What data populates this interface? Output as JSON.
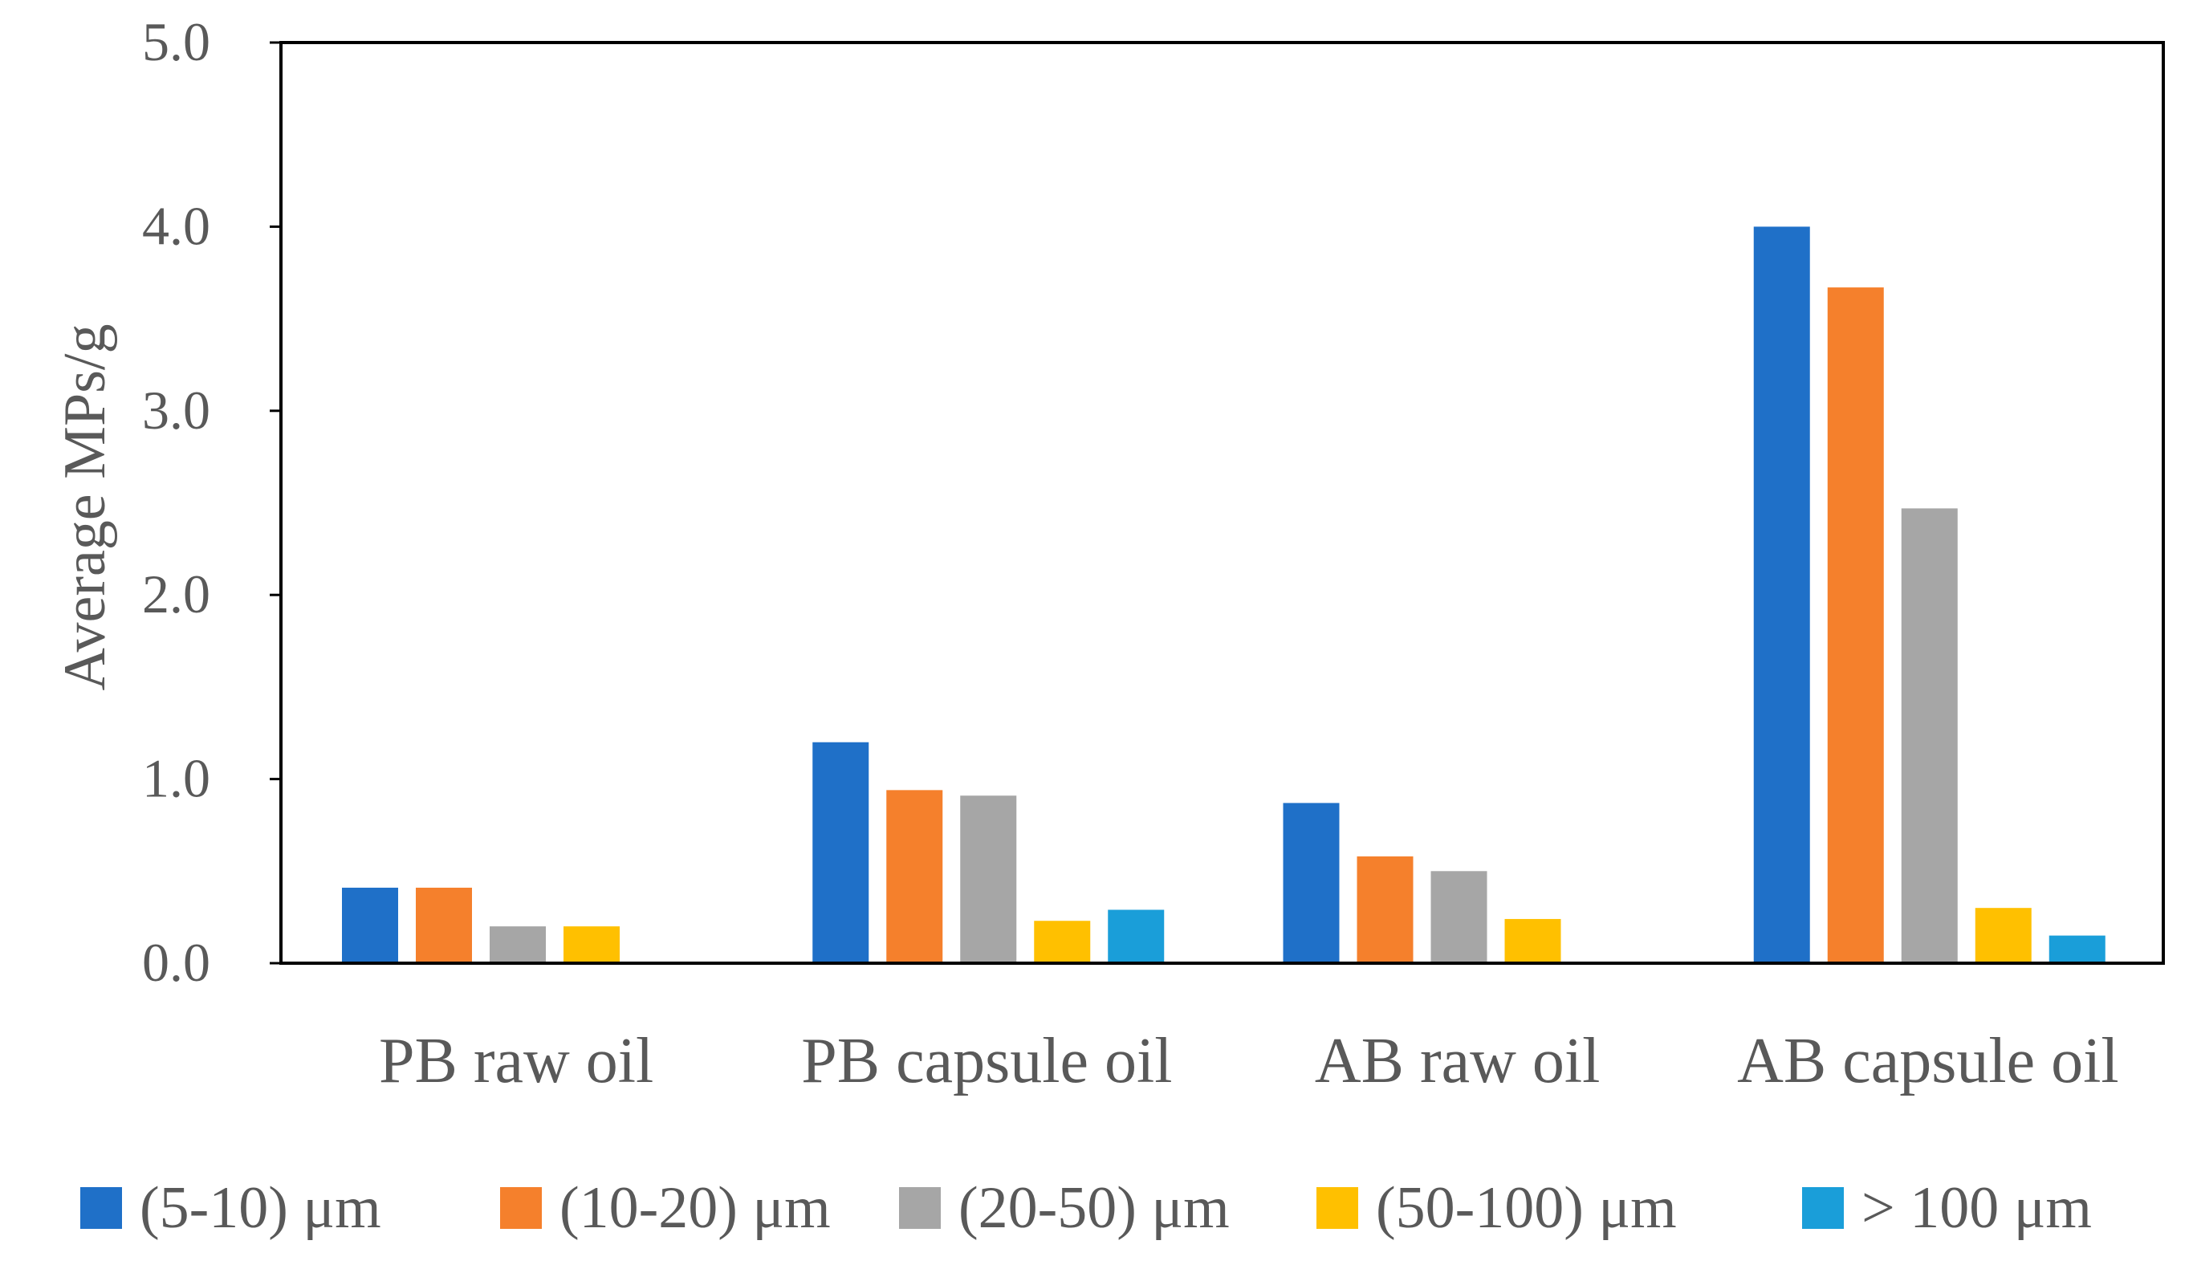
{
  "chart_data": {
    "type": "bar",
    "title": "",
    "xlabel": "",
    "ylabel": "Average MPs/g",
    "ylim": [
      0,
      5
    ],
    "y_ticks": [
      "0.0",
      "1.0",
      "2.0",
      "3.0",
      "4.0",
      "5.0"
    ],
    "grid": false,
    "legend_position": "bottom",
    "categories": [
      "PB raw oil",
      "PB capsule oil",
      "AB raw oil",
      "AB capsule oil"
    ],
    "series": [
      {
        "name": "(5-10) μm",
        "color": "#1f70c8",
        "values": [
          0.41,
          1.2,
          0.87,
          4.0
        ]
      },
      {
        "name": "(10-20) μm",
        "color": "#f5802c",
        "values": [
          0.41,
          0.94,
          0.58,
          3.67
        ]
      },
      {
        "name": "(20-50) μm",
        "color": "#a6a6a6",
        "values": [
          0.2,
          0.91,
          0.5,
          2.47
        ]
      },
      {
        "name": "(50-100) μm",
        "color": "#ffc000",
        "values": [
          0.2,
          0.23,
          0.24,
          0.3
        ]
      },
      {
        "name": "> 100 μm",
        "color": "#1a9ed9",
        "values": [
          0,
          0.29,
          0,
          0.15
        ]
      }
    ]
  }
}
